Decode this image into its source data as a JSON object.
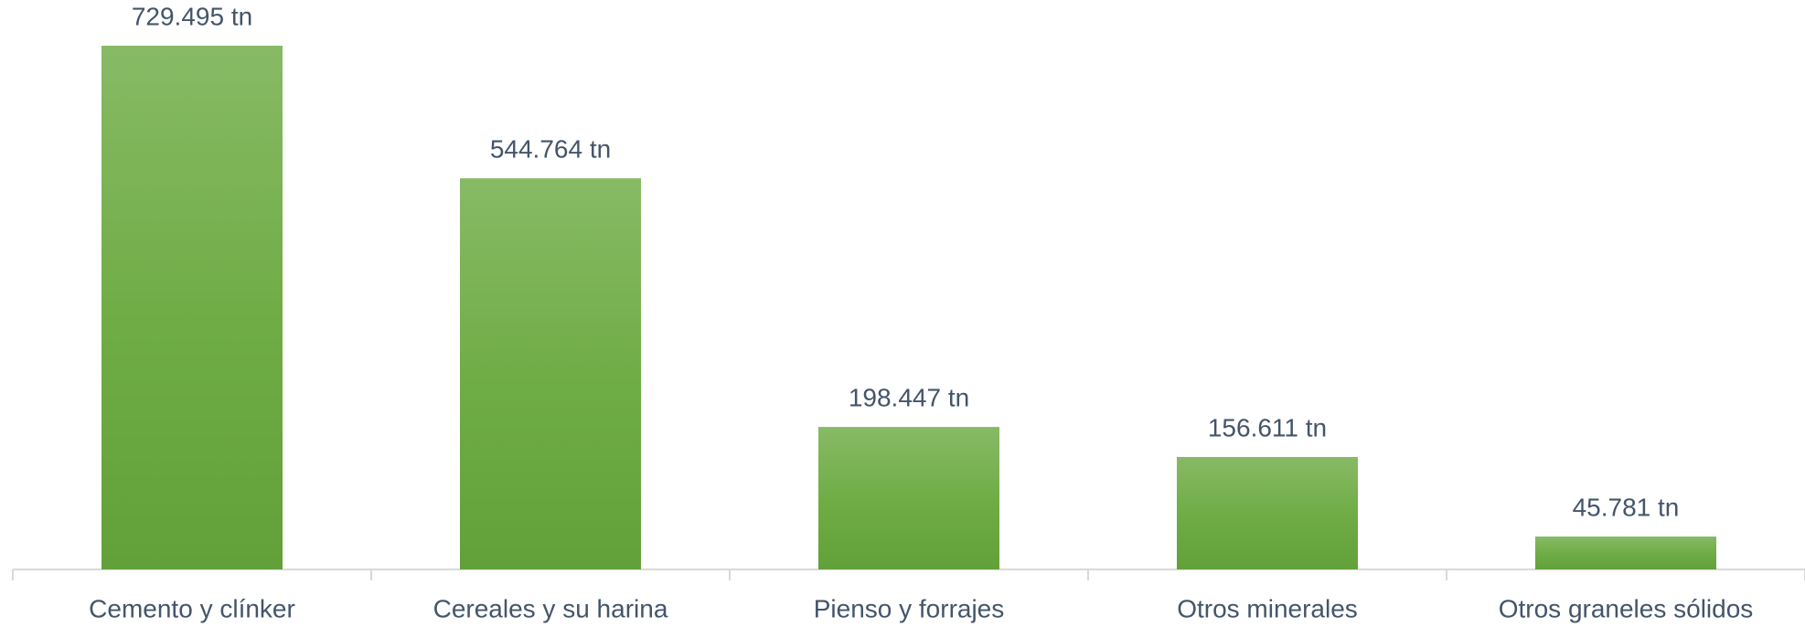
{
  "chart_data": {
    "type": "bar",
    "categories": [
      "Cemento y clínker",
      "Cereales y su harina",
      "Pienso y forrajes",
      "Otros minerales",
      "Otros graneles sólidos"
    ],
    "values": [
      729495,
      544764,
      198447,
      156611,
      45781
    ],
    "value_labels": [
      "729.495 tn",
      "544.764 tn",
      "198.447 tn",
      "156.611 tn",
      "45.781 tn"
    ],
    "color": "#70ad47"
  }
}
